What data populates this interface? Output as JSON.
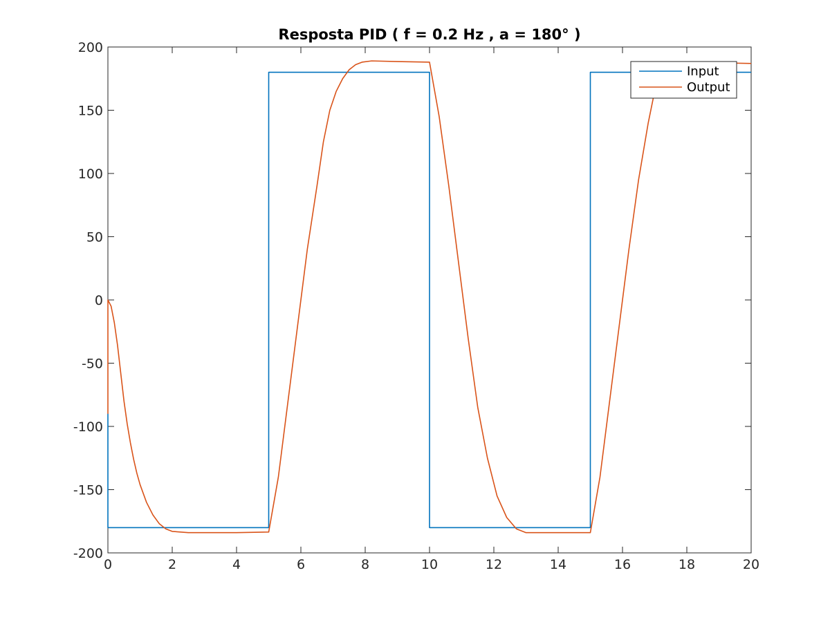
{
  "chart_data": {
    "type": "line",
    "title": "Resposta PID ( f = 0.2 Hz , a = 180° )",
    "xlabel": "",
    "ylabel": "",
    "xlim": [
      0,
      20
    ],
    "ylim": [
      -200,
      200
    ],
    "xticks": [
      0,
      2,
      4,
      6,
      8,
      10,
      12,
      14,
      16,
      18,
      20
    ],
    "yticks": [
      -200,
      -150,
      -100,
      -50,
      0,
      50,
      100,
      150,
      200
    ],
    "grid": false,
    "legend_position": "top-right",
    "series": [
      {
        "name": "Input",
        "color": "#0072BD",
        "points": [
          [
            0,
            -90
          ],
          [
            0,
            -180
          ],
          [
            5,
            -180
          ],
          [
            5,
            180
          ],
          [
            10,
            180
          ],
          [
            10,
            -180
          ],
          [
            15,
            -180
          ],
          [
            15,
            180
          ],
          [
            20,
            180
          ]
        ]
      },
      {
        "name": "Output",
        "color": "#D95319",
        "points": [
          [
            0,
            -90
          ],
          [
            0,
            0
          ],
          [
            0.1,
            -5
          ],
          [
            0.2,
            -18
          ],
          [
            0.3,
            -36
          ],
          [
            0.4,
            -58
          ],
          [
            0.5,
            -80
          ],
          [
            0.6,
            -98
          ],
          [
            0.7,
            -113
          ],
          [
            0.8,
            -126
          ],
          [
            0.9,
            -137
          ],
          [
            1.0,
            -146
          ],
          [
            1.2,
            -160
          ],
          [
            1.4,
            -170
          ],
          [
            1.6,
            -177
          ],
          [
            1.8,
            -181
          ],
          [
            2.0,
            -183
          ],
          [
            2.5,
            -184
          ],
          [
            3,
            -184
          ],
          [
            4,
            -184
          ],
          [
            5,
            -183.5
          ],
          [
            5.3,
            -140
          ],
          [
            5.6,
            -80
          ],
          [
            5.9,
            -20
          ],
          [
            6.2,
            40
          ],
          [
            6.5,
            90
          ],
          [
            6.7,
            125
          ],
          [
            6.9,
            150
          ],
          [
            7.1,
            165
          ],
          [
            7.3,
            175
          ],
          [
            7.5,
            182
          ],
          [
            7.7,
            186
          ],
          [
            7.9,
            188
          ],
          [
            8.2,
            189
          ],
          [
            9,
            188.5
          ],
          [
            10,
            188
          ],
          [
            10.3,
            145
          ],
          [
            10.6,
            90
          ],
          [
            10.9,
            30
          ],
          [
            11.2,
            -30
          ],
          [
            11.5,
            -85
          ],
          [
            11.8,
            -125
          ],
          [
            12.1,
            -155
          ],
          [
            12.4,
            -172
          ],
          [
            12.7,
            -181
          ],
          [
            13.0,
            -184
          ],
          [
            14,
            -184
          ],
          [
            15,
            -184
          ],
          [
            15.3,
            -140
          ],
          [
            15.6,
            -80
          ],
          [
            15.9,
            -20
          ],
          [
            16.2,
            40
          ],
          [
            16.5,
            95
          ],
          [
            16.8,
            140
          ],
          [
            17.0,
            165
          ],
          [
            17.2,
            178
          ],
          [
            17.5,
            185
          ],
          [
            18,
            187
          ],
          [
            19,
            187.5
          ],
          [
            20,
            187
          ]
        ]
      }
    ]
  }
}
